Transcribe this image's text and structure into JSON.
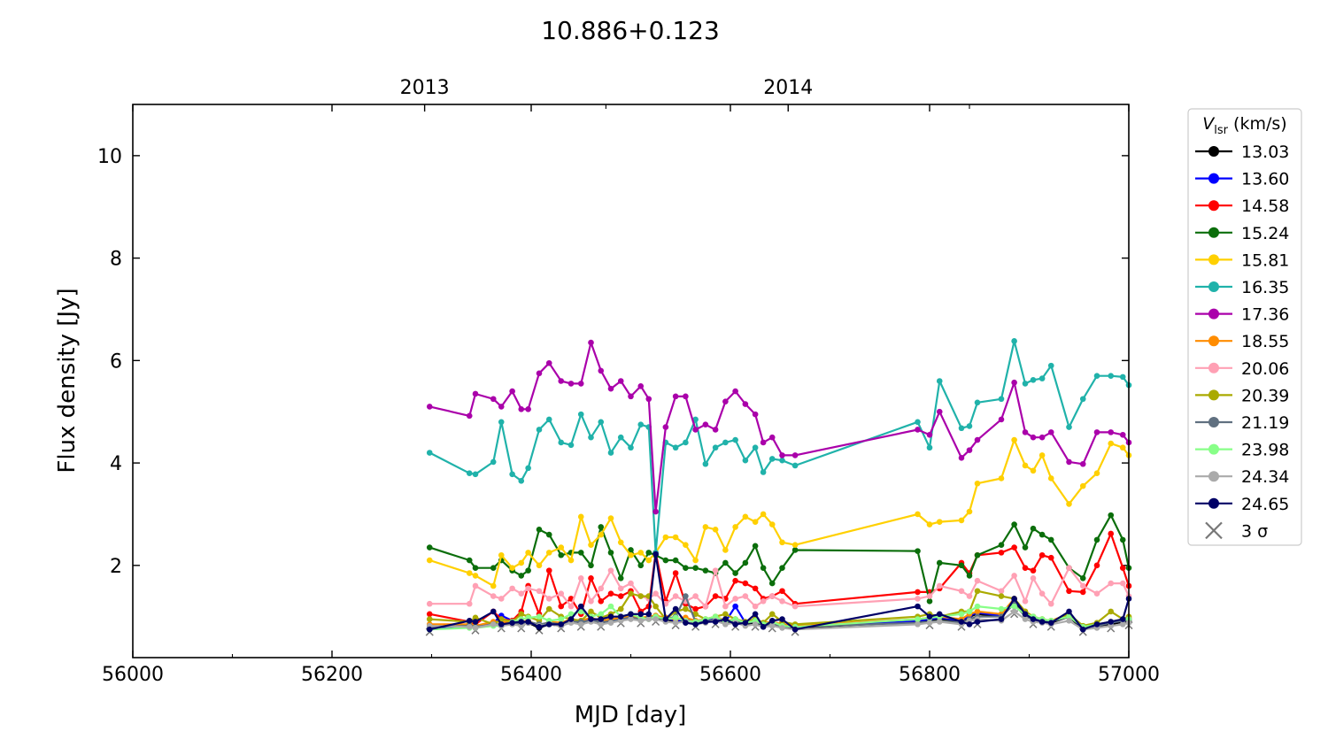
{
  "chart_data": {
    "type": "line",
    "title": "10.886+0.123",
    "xlabel": "MJD [day]",
    "ylabel": "Flux density [Jy]",
    "xlim": [
      56000,
      57000
    ],
    "ylim": [
      0.2,
      11.0
    ],
    "x_ticks": [
      56000,
      56200,
      56400,
      56600,
      56800,
      57000
    ],
    "y_ticks": [
      2,
      4,
      6,
      8,
      10
    ],
    "top_axis": {
      "ticks": [
        {
          "mjd": 56293,
          "label": "2013"
        },
        {
          "mjd": 56658,
          "label": "2014"
        }
      ]
    },
    "grid": false,
    "legend": {
      "position": "outside-right",
      "title_symbol": "V",
      "title_sub": "lsr",
      "title_unit": " (km/s)",
      "sigma_label": "3 σ",
      "sigma_color": "#777777"
    },
    "mjd": [
      56298,
      56338,
      56344,
      56362,
      56370,
      56381,
      56390,
      56397,
      56408,
      56418,
      56430,
      56440,
      56450,
      56460,
      56470,
      56480,
      56490,
      56500,
      56510,
      56518,
      56525,
      56535,
      56545,
      56555,
      56565,
      56575,
      56585,
      56595,
      56605,
      56615,
      56625,
      56633,
      56642,
      56652,
      56665,
      56788,
      56800,
      56810,
      56832,
      56840,
      56848,
      56872,
      56885,
      56896,
      56904,
      56913,
      56922,
      56940,
      56954,
      56968,
      56982,
      56994,
      57000
    ],
    "series": [
      {
        "name": "13.03",
        "color": "#000000",
        "values": [
          0.75,
          0.8,
          0.78,
          0.85,
          0.82,
          0.9,
          0.85,
          0.88,
          0.78,
          0.85,
          0.82,
          0.9,
          0.88,
          0.92,
          0.88,
          0.9,
          0.95,
          0.98,
          0.95,
          0.96,
          0.98,
          0.95,
          0.9,
          0.92,
          0.88,
          0.9,
          0.95,
          0.88,
          0.9,
          0.85,
          0.88,
          0.82,
          0.85,
          0.8,
          0.78,
          0.9,
          0.92,
          0.95,
          0.9,
          1.0,
          1.05,
          1.0,
          1.3,
          1.05,
          0.95,
          0.9,
          0.88,
          1.0,
          0.75,
          0.8,
          0.85,
          0.9,
          0.92
        ]
      },
      {
        "name": "13.60",
        "color": "#0000ff",
        "values": [
          0.78,
          0.82,
          0.8,
          0.88,
          1.02,
          0.92,
          0.88,
          0.9,
          0.8,
          0.88,
          0.85,
          0.92,
          0.9,
          0.95,
          0.9,
          0.92,
          0.98,
          1.0,
          0.98,
          0.98,
          1.0,
          0.98,
          0.92,
          0.95,
          0.9,
          0.92,
          0.98,
          0.9,
          1.2,
          0.88,
          0.9,
          0.85,
          0.88,
          0.82,
          0.8,
          0.92,
          0.95,
          0.98,
          0.92,
          1.02,
          1.08,
          1.02,
          1.32,
          1.08,
          0.98,
          0.92,
          0.9,
          1.02,
          0.78,
          0.82,
          0.88,
          0.92,
          0.95
        ]
      },
      {
        "name": "14.58",
        "color": "#ff0000",
        "values": [
          1.05,
          0.9,
          0.85,
          1.1,
          0.95,
          0.92,
          1.1,
          1.6,
          1.05,
          1.9,
          1.2,
          1.35,
          1.05,
          1.75,
          1.3,
          1.45,
          1.4,
          1.5,
          1.1,
          1.2,
          2.25,
          1.3,
          1.85,
          1.25,
          1.15,
          1.2,
          1.4,
          1.35,
          1.7,
          1.65,
          1.55,
          1.35,
          1.4,
          1.5,
          1.25,
          1.48,
          1.48,
          1.55,
          2.05,
          1.85,
          2.2,
          2.25,
          2.35,
          1.95,
          1.9,
          2.2,
          2.15,
          1.5,
          1.48,
          2.0,
          2.62,
          1.95,
          1.6
        ]
      },
      {
        "name": "15.24",
        "color": "#0b6e0b",
        "values": [
          2.35,
          2.1,
          1.95,
          1.95,
          2.1,
          1.9,
          1.8,
          1.9,
          2.7,
          2.6,
          2.2,
          2.25,
          2.25,
          2.0,
          2.75,
          2.25,
          1.75,
          2.3,
          2.0,
          2.25,
          2.2,
          2.1,
          2.1,
          1.95,
          1.95,
          1.9,
          1.85,
          2.05,
          1.85,
          2.05,
          2.38,
          1.95,
          1.65,
          1.95,
          2.3,
          2.28,
          1.3,
          2.05,
          2.0,
          1.8,
          2.2,
          2.4,
          2.8,
          2.35,
          2.72,
          2.6,
          2.5,
          1.95,
          1.75,
          2.5,
          2.98,
          2.5,
          1.95
        ]
      },
      {
        "name": "15.81",
        "color": "#ffd000",
        "values": [
          2.1,
          1.85,
          1.8,
          1.6,
          2.2,
          1.95,
          2.05,
          2.25,
          2.0,
          2.25,
          2.35,
          2.1,
          2.95,
          2.4,
          2.6,
          2.92,
          2.45,
          2.2,
          2.25,
          2.1,
          2.25,
          2.55,
          2.55,
          2.4,
          2.1,
          2.75,
          2.7,
          2.3,
          2.75,
          2.95,
          2.85,
          3.0,
          2.8,
          2.45,
          2.4,
          3.0,
          2.8,
          2.85,
          2.88,
          3.05,
          3.6,
          3.7,
          4.45,
          3.95,
          3.85,
          4.15,
          3.7,
          3.2,
          3.55,
          3.8,
          4.38,
          4.3,
          4.15
        ]
      },
      {
        "name": "16.35",
        "color": "#20b2aa",
        "values": [
          4.2,
          3.8,
          3.78,
          4.02,
          4.8,
          3.78,
          3.65,
          3.9,
          4.65,
          4.85,
          4.4,
          4.35,
          4.95,
          4.5,
          4.8,
          4.2,
          4.5,
          4.3,
          4.75,
          4.7,
          2.25,
          4.4,
          4.3,
          4.4,
          4.85,
          3.98,
          4.3,
          4.4,
          4.45,
          4.05,
          4.3,
          3.82,
          4.08,
          4.05,
          3.95,
          4.8,
          4.3,
          5.6,
          4.68,
          4.72,
          5.18,
          5.25,
          6.38,
          5.55,
          5.62,
          5.65,
          5.9,
          4.7,
          5.25,
          5.7,
          5.7,
          5.68,
          5.52
        ]
      },
      {
        "name": "17.36",
        "color": "#aa00aa",
        "values": [
          5.1,
          4.92,
          5.35,
          5.25,
          5.1,
          5.4,
          5.05,
          5.05,
          5.75,
          5.95,
          5.6,
          5.55,
          5.55,
          6.35,
          5.8,
          5.45,
          5.6,
          5.3,
          5.5,
          5.25,
          3.05,
          4.7,
          5.3,
          5.3,
          4.65,
          4.75,
          4.65,
          5.2,
          5.4,
          5.15,
          4.95,
          4.4,
          4.5,
          4.15,
          4.15,
          4.65,
          4.55,
          5.0,
          4.1,
          4.25,
          4.45,
          4.85,
          5.57,
          4.6,
          4.5,
          4.5,
          4.6,
          4.02,
          3.98,
          4.6,
          4.6,
          4.55,
          4.4
        ]
      },
      {
        "name": "18.55",
        "color": "#ff8c00",
        "values": [
          0.85,
          0.85,
          0.82,
          0.9,
          0.9,
          0.88,
          0.9,
          0.92,
          0.82,
          0.9,
          0.88,
          0.95,
          0.92,
          0.98,
          0.92,
          0.95,
          0.98,
          1.02,
          0.98,
          1.0,
          1.02,
          0.98,
          0.95,
          0.98,
          0.92,
          0.95,
          1.0,
          0.92,
          0.95,
          0.9,
          0.92,
          0.88,
          0.9,
          0.85,
          0.82,
          0.95,
          0.98,
          1.0,
          0.95,
          1.05,
          1.1,
          1.05,
          1.35,
          1.1,
          1.0,
          0.95,
          0.92,
          1.05,
          0.8,
          0.85,
          0.9,
          0.95,
          0.98
        ]
      },
      {
        "name": "20.06",
        "color": "#ffa0b4",
        "values": [
          1.25,
          1.25,
          1.6,
          1.4,
          1.35,
          1.55,
          1.45,
          1.55,
          1.5,
          1.35,
          1.45,
          1.2,
          1.75,
          1.3,
          1.55,
          1.9,
          1.55,
          1.65,
          1.4,
          1.35,
          1.45,
          1.25,
          1.4,
          1.3,
          1.4,
          1.2,
          1.9,
          1.2,
          1.35,
          1.4,
          1.2,
          1.3,
          1.4,
          1.3,
          1.2,
          1.35,
          1.4,
          1.6,
          1.5,
          1.4,
          1.7,
          1.5,
          1.8,
          1.3,
          1.75,
          1.45,
          1.25,
          1.95,
          1.6,
          1.45,
          1.65,
          1.65,
          1.4
        ]
      },
      {
        "name": "20.39",
        "color": "#aaaa00",
        "values": [
          0.95,
          0.9,
          0.98,
          0.85,
          0.95,
          0.9,
          1.05,
          1.0,
          0.92,
          1.15,
          1.0,
          0.95,
          0.92,
          1.1,
          0.98,
          1.05,
          1.15,
          1.45,
          1.4,
          1.4,
          1.2,
          0.95,
          1.1,
          1.15,
          1.05,
          0.95,
          1.0,
          1.05,
          0.95,
          0.9,
          0.95,
          0.88,
          1.05,
          0.9,
          0.85,
          1.0,
          1.05,
          1.0,
          1.1,
          1.1,
          1.5,
          1.4,
          1.35,
          1.1,
          1.0,
          0.95,
          0.9,
          1.05,
          0.82,
          0.88,
          1.1,
          0.95,
          1.0
        ]
      },
      {
        "name": "21.19",
        "color": "#607080",
        "values": [
          0.8,
          0.82,
          0.8,
          0.85,
          0.85,
          0.85,
          0.88,
          0.9,
          0.85,
          0.88,
          0.85,
          0.9,
          0.9,
          0.92,
          0.9,
          0.9,
          0.95,
          0.98,
          0.95,
          0.98,
          1.0,
          0.95,
          1.0,
          1.4,
          0.9,
          0.9,
          0.95,
          0.9,
          0.92,
          0.88,
          0.9,
          0.85,
          0.85,
          0.82,
          0.8,
          0.88,
          0.9,
          0.92,
          0.88,
          0.95,
          1.0,
          1.0,
          1.25,
          1.0,
          0.95,
          0.92,
          0.9,
          1.0,
          0.8,
          0.82,
          0.88,
          0.92,
          0.95
        ]
      },
      {
        "name": "23.98",
        "color": "#88ff88",
        "values": [
          0.75,
          0.78,
          0.78,
          0.82,
          0.82,
          0.9,
          0.95,
          0.98,
          1.0,
          0.92,
          0.95,
          1.05,
          1.1,
          1.0,
          1.05,
          1.2,
          1.0,
          1.05,
          0.98,
          0.95,
          1.0,
          0.95,
          0.98,
          0.92,
          0.9,
          0.95,
          1.0,
          0.9,
          0.95,
          0.88,
          0.92,
          0.85,
          0.9,
          0.82,
          0.8,
          0.95,
          0.98,
          1.0,
          1.05,
          1.1,
          1.2,
          1.15,
          1.2,
          1.05,
          1.0,
          0.95,
          0.92,
          1.0,
          0.8,
          0.85,
          0.9,
          0.95,
          0.95
        ]
      },
      {
        "name": "24.34",
        "color": "#aaaaaa",
        "values": [
          0.82,
          0.8,
          0.78,
          0.85,
          0.82,
          0.85,
          0.82,
          0.88,
          0.82,
          0.85,
          0.82,
          0.88,
          0.85,
          0.9,
          0.85,
          0.88,
          0.92,
          0.95,
          0.92,
          0.95,
          0.95,
          0.9,
          0.88,
          0.9,
          0.85,
          0.88,
          0.92,
          0.85,
          0.88,
          0.82,
          0.85,
          0.8,
          0.82,
          0.78,
          0.75,
          0.85,
          0.88,
          0.9,
          0.85,
          0.92,
          0.95,
          0.92,
          1.1,
          0.95,
          0.9,
          0.88,
          0.85,
          0.92,
          0.75,
          0.78,
          0.82,
          0.85,
          0.88
        ]
      },
      {
        "name": "24.65",
        "color": "#000066",
        "values": [
          0.75,
          0.92,
          0.9,
          1.1,
          0.85,
          0.88,
          0.9,
          0.9,
          0.8,
          0.85,
          0.85,
          0.95,
          1.2,
          0.95,
          0.95,
          1.0,
          1.0,
          1.05,
          1.05,
          1.05,
          2.22,
          0.95,
          1.15,
          0.88,
          0.85,
          0.9,
          0.9,
          0.95,
          0.85,
          0.88,
          1.05,
          0.8,
          0.92,
          0.95,
          0.75,
          1.2,
          1.0,
          1.05,
          0.9,
          0.85,
          0.9,
          0.95,
          1.35,
          1.05,
          0.95,
          0.9,
          0.88,
          1.1,
          0.75,
          0.85,
          0.9,
          0.95,
          1.35
        ]
      }
    ]
  }
}
